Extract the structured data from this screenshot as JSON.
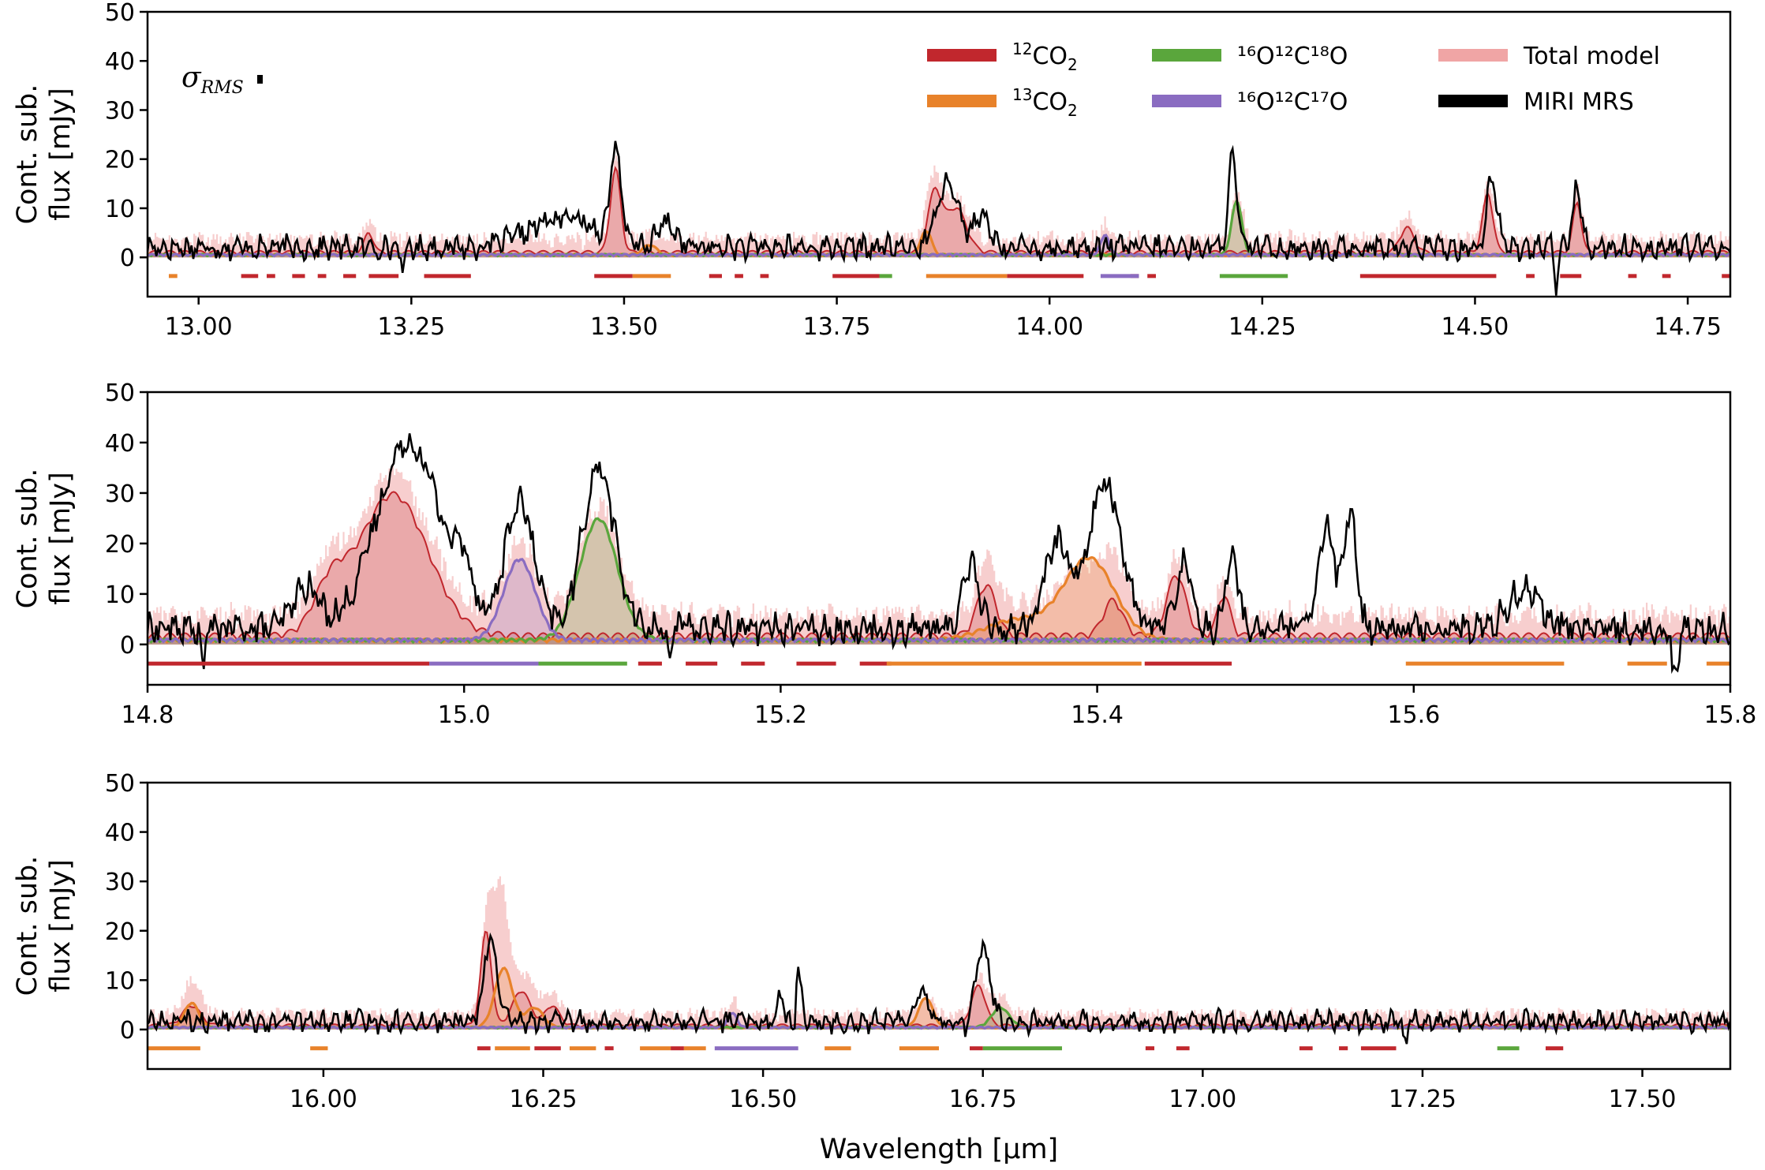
{
  "figure": {
    "xlabel": "Wavelength [μm]",
    "ylabel_line1": "Cont. sub.",
    "ylabel_line2": "flux [mJy]",
    "sigma_label": "σ",
    "sigma_sub": "RMS"
  },
  "legend": [
    {
      "key": "co2_12",
      "pre": "12",
      "main": "CO",
      "sub": "2",
      "color": "#c1272d"
    },
    {
      "key": "co2_13",
      "pre": "13",
      "main": "CO",
      "sub": "2",
      "color": "#e8822a"
    },
    {
      "key": "o16c12o18",
      "text": "¹⁶O¹²C¹⁸O",
      "color": "#5aa63c"
    },
    {
      "key": "o16c12o17",
      "text": "¹⁶O¹²C¹⁷O",
      "color": "#8a6cc1"
    },
    {
      "key": "total",
      "text": "Total model",
      "color": "#f0a5a5"
    },
    {
      "key": "miri",
      "text": "MIRI MRS",
      "color": "#000000"
    }
  ],
  "chart_data": [
    {
      "type": "line",
      "panel": 1,
      "xlim": [
        12.94,
        14.8
      ],
      "ylim": [
        -8,
        50
      ],
      "yticks": [
        0,
        10,
        20,
        30,
        40,
        50
      ],
      "xticks": [
        "13.00",
        "13.25",
        "13.50",
        "13.75",
        "14.00",
        "14.25",
        "14.50",
        "14.75"
      ],
      "xtick_values": [
        13.0,
        13.25,
        13.5,
        13.75,
        14.0,
        14.25,
        14.5,
        14.75
      ],
      "baseline": 1.5,
      "noise": 2.2,
      "peaks": {
        "co2_12": [
          [
            13.49,
            17,
            0.006
          ],
          [
            13.865,
            12,
            0.008
          ],
          [
            13.89,
            9,
            0.012
          ],
          [
            14.515,
            12,
            0.006
          ],
          [
            14.62,
            10,
            0.005
          ],
          [
            13.2,
            4,
            0.005
          ],
          [
            14.42,
            5,
            0.008
          ]
        ],
        "co2_13": [
          [
            13.855,
            5,
            0.006
          ],
          [
            13.53,
            2,
            0.008
          ]
        ],
        "o16c12o18": [
          [
            14.22,
            11,
            0.006
          ]
        ],
        "o16c12o17": [
          [
            14.065,
            4,
            0.005
          ]
        ],
        "miri": [
          [
            13.49,
            19,
            0.006
          ],
          [
            13.88,
            14,
            0.012
          ],
          [
            14.215,
            18,
            0.005
          ],
          [
            14.52,
            14,
            0.006
          ],
          [
            14.62,
            12,
            0.005
          ],
          [
            13.43,
            6,
            0.04
          ],
          [
            13.55,
            5,
            0.01
          ],
          [
            13.92,
            6,
            0.01
          ]
        ]
      },
      "dips": [
        [
          13.24,
          -4
        ],
        [
          14.595,
          -7
        ],
        [
          14.33,
          -2
        ]
      ],
      "marker_segments": [
        {
          "color": "co2_13",
          "ranges": [
            [
              12.965,
              12.975
            ]
          ]
        },
        {
          "color": "co2_12",
          "ranges": [
            [
              13.05,
              13.07
            ],
            [
              13.08,
              13.09
            ],
            [
              13.11,
              13.125
            ],
            [
              13.14,
              13.15
            ],
            [
              13.17,
              13.185
            ],
            [
              13.2,
              13.235
            ],
            [
              13.265,
              13.32
            ]
          ]
        },
        {
          "color": "co2_12",
          "ranges": [
            [
              13.465,
              13.51
            ],
            [
              13.745,
              13.8
            ],
            [
              13.95,
              14.04
            ],
            [
              14.115,
              14.125
            ],
            [
              14.365,
              14.525
            ],
            [
              14.56,
              14.57
            ],
            [
              14.6,
              14.625
            ],
            [
              14.68,
              14.69
            ],
            [
              14.72,
              14.73
            ],
            [
              14.79,
              14.8
            ]
          ]
        },
        {
          "color": "co2_13",
          "ranges": [
            [
              13.51,
              13.555
            ],
            [
              13.855,
              13.95
            ]
          ]
        },
        {
          "color": "co2_12",
          "ranges": [
            [
              13.6,
              13.615
            ],
            [
              13.63,
              13.64
            ],
            [
              13.66,
              13.67
            ],
            [
              14.095,
              14.105
            ]
          ]
        },
        {
          "color": "o16c12o18",
          "ranges": [
            [
              13.8,
              13.815
            ],
            [
              14.2,
              14.28
            ]
          ]
        },
        {
          "color": "o16c12o17",
          "ranges": [
            [
              14.06,
              14.105
            ]
          ]
        }
      ]
    },
    {
      "type": "line",
      "panel": 2,
      "xlim": [
        14.8,
        15.8
      ],
      "ylim": [
        -8,
        50
      ],
      "yticks": [
        0,
        10,
        20,
        30,
        40,
        50
      ],
      "xticks": [
        "14.8",
        "15.0",
        "15.2",
        "15.4",
        "15.6",
        "15.8"
      ],
      "xtick_values": [
        14.8,
        15.0,
        15.2,
        15.4,
        15.6,
        15.8
      ],
      "baseline": 2.5,
      "noise": 3.0,
      "peaks": {
        "co2_12": [
          [
            14.955,
            28,
            0.022
          ],
          [
            14.915,
            8,
            0.01
          ],
          [
            15.33,
            10,
            0.006
          ],
          [
            15.45,
            12,
            0.006
          ],
          [
            15.41,
            7,
            0.006
          ],
          [
            15.48,
            8,
            0.004
          ]
        ],
        "co2_13": [
          [
            15.395,
            16,
            0.016
          ],
          [
            15.35,
            4,
            0.02
          ]
        ],
        "o16c12o18": [
          [
            15.085,
            24,
            0.012
          ]
        ],
        "o16c12o17": [
          [
            15.035,
            16,
            0.01
          ]
        ],
        "miri": [
          [
            14.965,
            37,
            0.02
          ],
          [
            15.035,
            25,
            0.009
          ],
          [
            15.085,
            32,
            0.01
          ],
          [
            15.405,
            29,
            0.01
          ],
          [
            15.375,
            17,
            0.008
          ],
          [
            15.32,
            13,
            0.005
          ],
          [
            15.455,
            13,
            0.005
          ],
          [
            15.485,
            14,
            0.004
          ],
          [
            15.545,
            20,
            0.005
          ],
          [
            15.56,
            22,
            0.004
          ],
          [
            15.67,
            8,
            0.01
          ],
          [
            14.9,
            8,
            0.008
          ],
          [
            15.0,
            8,
            0.006
          ]
        ]
      },
      "dips": [
        [
          14.835,
          -3
        ],
        [
          15.765,
          -8
        ],
        [
          15.13,
          -1
        ]
      ],
      "marker_segments": [
        {
          "color": "co2_12",
          "ranges": [
            [
              14.8,
              14.978
            ],
            [
              15.11,
              15.125
            ],
            [
              15.14,
              15.16
            ],
            [
              15.175,
              15.19
            ],
            [
              15.21,
              15.235
            ],
            [
              15.25,
              15.27
            ],
            [
              15.43,
              15.485
            ]
          ]
        },
        {
          "color": "o16c12o17",
          "ranges": [
            [
              14.978,
              15.047
            ]
          ]
        },
        {
          "color": "o16c12o18",
          "ranges": [
            [
              15.047,
              15.103
            ]
          ]
        },
        {
          "color": "co2_13",
          "ranges": [
            [
              15.267,
              15.428
            ],
            [
              15.595,
              15.695
            ],
            [
              15.735,
              15.76
            ],
            [
              15.785,
              15.8
            ]
          ]
        }
      ]
    },
    {
      "type": "line",
      "panel": 3,
      "xlim": [
        15.8,
        17.6
      ],
      "ylim": [
        -8,
        50
      ],
      "yticks": [
        0,
        10,
        20,
        30,
        40,
        50
      ],
      "xticks": [
        "16.00",
        "16.25",
        "16.50",
        "16.75",
        "17.00",
        "17.25",
        "17.50"
      ],
      "xtick_values": [
        16.0,
        16.25,
        16.5,
        16.75,
        17.0,
        17.25,
        17.5
      ],
      "baseline": 1.2,
      "noise": 1.8,
      "peaks": {
        "co2_12": [
          [
            16.185,
            19,
            0.006
          ],
          [
            16.225,
            7,
            0.01
          ],
          [
            16.745,
            8,
            0.008
          ],
          [
            16.26,
            4,
            0.008
          ],
          [
            15.85,
            4,
            0.01
          ]
        ],
        "co2_13": [
          [
            16.205,
            12,
            0.01
          ],
          [
            16.685,
            6,
            0.008
          ],
          [
            15.85,
            5,
            0.008
          ],
          [
            16.24,
            4,
            0.01
          ]
        ],
        "o16c12o18": [
          [
            16.77,
            4,
            0.01
          ]
        ],
        "o16c12o17": [
          [
            16.465,
            3,
            0.005
          ]
        ],
        "miri": [
          [
            16.19,
            17,
            0.007
          ],
          [
            16.75,
            15,
            0.008
          ],
          [
            16.54,
            11,
            0.003
          ],
          [
            16.68,
            6,
            0.008
          ],
          [
            16.52,
            6,
            0.003
          ]
        ],
        "total_extra": [
          [
            16.2,
            20,
            0.008
          ]
        ]
      },
      "dips": [
        [
          16.535,
          -3
        ],
        [
          17.23,
          -4
        ],
        [
          16.73,
          -1
        ]
      ],
      "marker_segments": [
        {
          "color": "co2_13",
          "ranges": [
            [
              15.8,
              15.86
            ],
            [
              15.985,
              16.005
            ],
            [
              16.195,
              16.235
            ],
            [
              16.28,
              16.31
            ],
            [
              16.36,
              16.395
            ],
            [
              16.41,
              16.435
            ],
            [
              16.57,
              16.6
            ],
            [
              16.655,
              16.7
            ]
          ]
        },
        {
          "color": "co2_12",
          "ranges": [
            [
              16.175,
              16.19
            ],
            [
              16.24,
              16.27
            ],
            [
              16.32,
              16.33
            ],
            [
              16.395,
              16.41
            ],
            [
              16.935,
              16.945
            ],
            [
              16.97,
              16.985
            ],
            [
              17.11,
              17.125
            ],
            [
              17.155,
              17.165
            ],
            [
              17.18,
              17.22
            ],
            [
              17.39,
              17.41
            ]
          ]
        },
        {
          "color": "o16c12o17",
          "ranges": [
            [
              16.445,
              16.54
            ]
          ]
        },
        {
          "color": "co2_12",
          "ranges": [
            [
              16.735,
              16.75
            ]
          ]
        },
        {
          "color": "o16c12o18",
          "ranges": [
            [
              16.75,
              16.84
            ],
            [
              17.335,
              17.36
            ]
          ]
        }
      ]
    }
  ]
}
